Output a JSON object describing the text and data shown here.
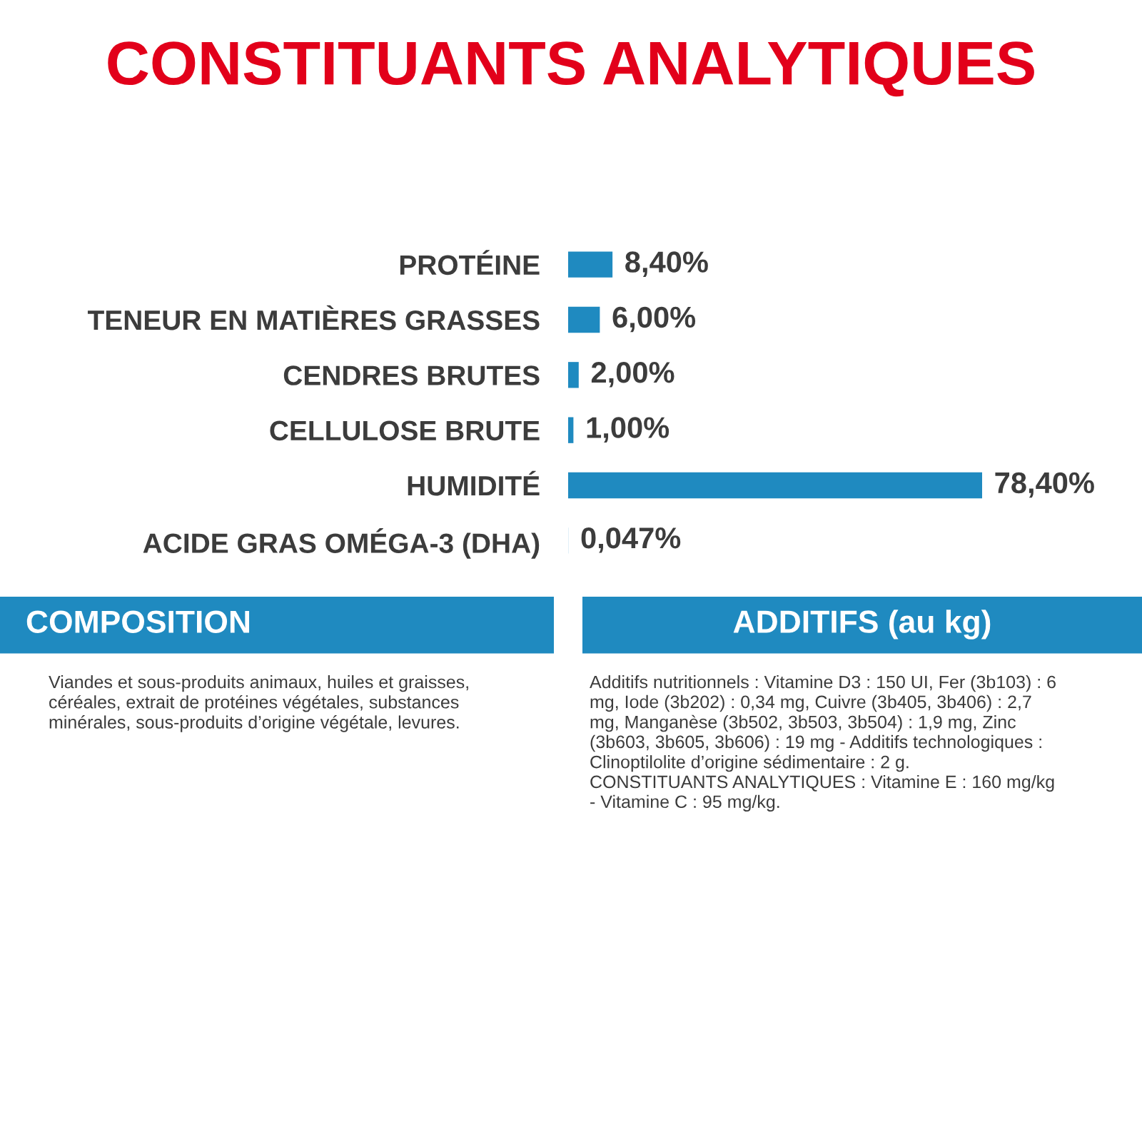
{
  "chart_data": [
    {
      "type": "bar",
      "orientation": "horizontal",
      "title": "CONSTITUANTS ANALYTIQUES",
      "categories": [
        "PROTÉINE",
        "TENEUR EN MATIÈRES GRASSES",
        "CENDRES BRUTES",
        "CELLULOSE BRUTE",
        "HUMIDITÉ",
        "ACIDE GRAS OMÉGA-3 (DHA)"
      ],
      "values": [
        8.4,
        6.0,
        2.0,
        1.0,
        78.4,
        0.047
      ],
      "colors": [
        "#1f8ac0",
        "#1f8ac0",
        "#1f8ac0",
        "#1f8ac0",
        "#1f8ac0",
        "#a9d3ea"
      ],
      "value_labels": [
        "8,40%",
        "6,00%",
        "2,00%",
        "1,00%",
        "78,40%",
        "0,047%"
      ]
    },
    {
      "type": "other",
      "title": "COMPOSITION",
      "annotations": [
        "Viandes et sous-produits animaux, huiles et graisses, céréales, extrait de protéines végétales, substances minérales, sous-produits d’origine végétale, levures."
      ]
    },
    {
      "type": "other",
      "title": "ADDITIFS (au kg)",
      "annotations": [
        "Additifs nutritionnels : Vitamine D3 : 150 UI, Fer (3b103) : 6 mg, Iode (3b202) : 0,34 mg, Cuivre (3b405, 3b406) : 2,7 mg, Manganèse (3b502, 3b503, 3b504) : 1,9 mg, Zinc (3b603, 3b605, 3b606) : 19 mg - Additifs technologiques : Clinoptilolite d’origine sédimentaire : 2 g.\nCONSTITUANTS ANALYTIQUES : Vitamine E : 160 mg/kg - Vitamine C : 95 mg/kg."
      ]
    }
  ]
}
